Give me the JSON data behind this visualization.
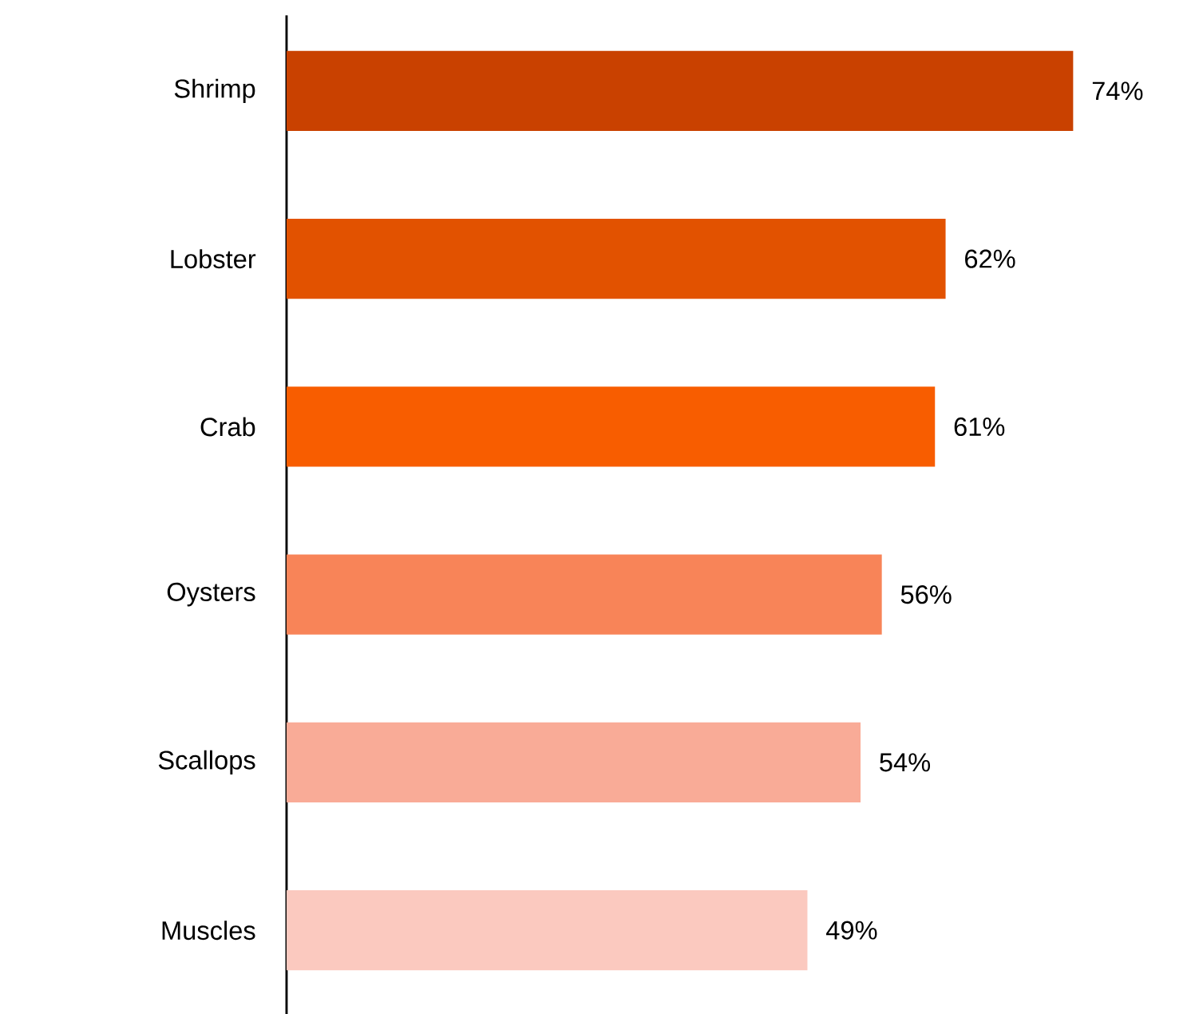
{
  "chart_data": {
    "type": "bar",
    "orientation": "horizontal",
    "categories": [
      "Shrimp",
      "Lobster",
      "Crab",
      "Oysters",
      "Scallops",
      "Muscles"
    ],
    "values": [
      74,
      62,
      61,
      56,
      54,
      49
    ],
    "value_labels": [
      "74%",
      "62%",
      "61%",
      "56%",
      "54%",
      "49%"
    ],
    "colors": [
      "#c94100",
      "#e25200",
      "#f85d00",
      "#f88458",
      "#f9ab97",
      "#fbc9bf"
    ]
  }
}
